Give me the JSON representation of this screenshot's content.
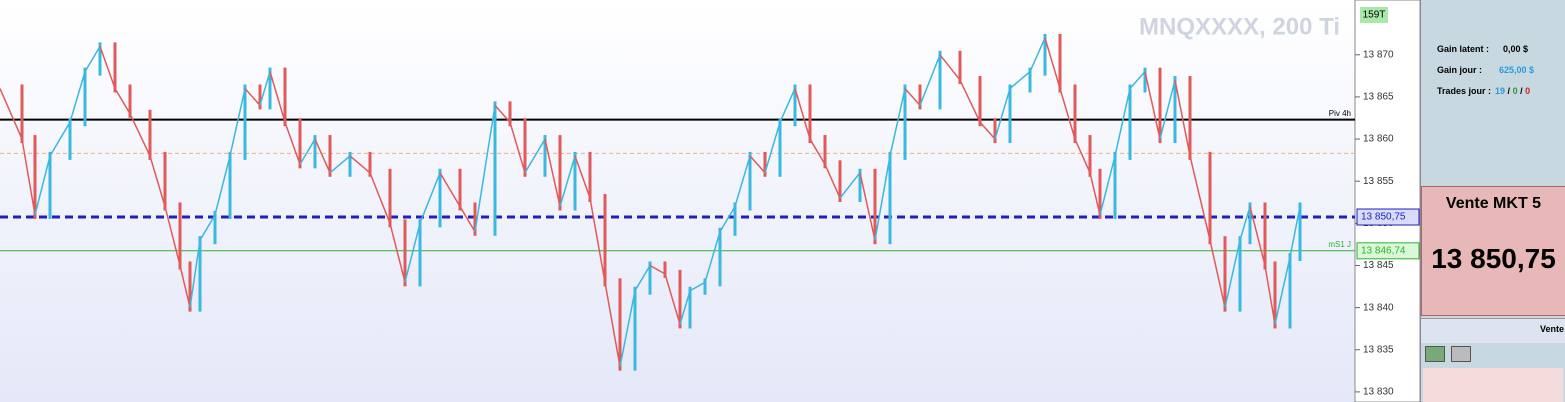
{
  "chart_data": {
    "type": "line",
    "watermark": "MNQXXXX, 200 Ti",
    "badge": "159T",
    "x": [
      0,
      22,
      35,
      50,
      70,
      85,
      100,
      115,
      130,
      150,
      165,
      180,
      190,
      200,
      215,
      230,
      245,
      260,
      270,
      285,
      300,
      315,
      330,
      350,
      370,
      390,
      405,
      420,
      440,
      460,
      475,
      495,
      510,
      525,
      545,
      560,
      575,
      590,
      605,
      620,
      635,
      650,
      665,
      680,
      690,
      705,
      720,
      735,
      750,
      765,
      780,
      795,
      810,
      825,
      840,
      860,
      875,
      890,
      905,
      920,
      940,
      960,
      980,
      995,
      1010,
      1030,
      1045,
      1060,
      1075,
      1090,
      1100,
      1115,
      1130,
      1145,
      1160,
      1175,
      1190,
      1210,
      1225,
      1240,
      1250,
      1265,
      1275,
      1290,
      1300
    ],
    "values": [
      13866,
      13860,
      13851,
      13858,
      13862,
      13868,
      13871,
      13866,
      13863,
      13858,
      13852,
      13845,
      13840,
      13848,
      13851,
      13858,
      13866,
      13864,
      13868,
      13862,
      13857,
      13860,
      13856,
      13858,
      13856,
      13850,
      13843,
      13850,
      13856,
      13852,
      13849,
      13864,
      13862,
      13856,
      13860,
      13852,
      13858,
      13853,
      13843,
      13833,
      13842,
      13845,
      13844,
      13838,
      13842,
      13843,
      13849,
      13852,
      13858,
      13856,
      13862,
      13866,
      13860,
      13857,
      13853,
      13856,
      13848,
      13858,
      13866,
      13864,
      13870,
      13867,
      13862,
      13860,
      13866,
      13868,
      13872,
      13866,
      13860,
      13856,
      13851,
      13858,
      13866,
      13868,
      13860,
      13867,
      13858,
      13848,
      13840,
      13848,
      13852,
      13845,
      13838,
      13846,
      13852
    ],
    "up_color": "#3ab8e0",
    "down_color": "#e05a5a",
    "xlim": [
      0,
      1355
    ],
    "ylim": [
      13828.8,
      13876.5
    ],
    "yticks": [
      {
        "value": 13830,
        "label": "13 830"
      },
      {
        "value": 13835,
        "label": "13 835"
      },
      {
        "value": 13840,
        "label": "13 840"
      },
      {
        "value": 13845,
        "label": "13 845"
      },
      {
        "value": 13850,
        "label": "13 850"
      },
      {
        "value": 13855,
        "label": "13 855"
      },
      {
        "value": 13860,
        "label": "13 860"
      },
      {
        "value": 13865,
        "label": "13 865"
      },
      {
        "value": 13870,
        "label": "13 870"
      }
    ],
    "levels": [
      {
        "value": 13862.3,
        "name": "Piv 4h",
        "color": "#000000",
        "style": "solid"
      },
      {
        "value": 13858.3,
        "color": "#f0b080",
        "style": "dashed"
      },
      {
        "value": 13850.75,
        "label": "13 850,75",
        "color": "#2020c0",
        "style": "thick-dashed"
      },
      {
        "value": 13846.74,
        "label": "13 846,74",
        "name": "mS1 J",
        "color": "#30b030",
        "style": "solid"
      }
    ]
  },
  "panel": {
    "rows": [
      [
        "Gain latent :",
        "0,00 $"
      ],
      [
        "Gain jour :",
        "625,00 $"
      ]
    ],
    "trades_label": "Trades jour :",
    "trades": [
      "19",
      "/",
      "0",
      "/",
      "0"
    ],
    "order_title": "Vente MKT 5",
    "order_price": "13 850,75",
    "footer": "Vente"
  }
}
